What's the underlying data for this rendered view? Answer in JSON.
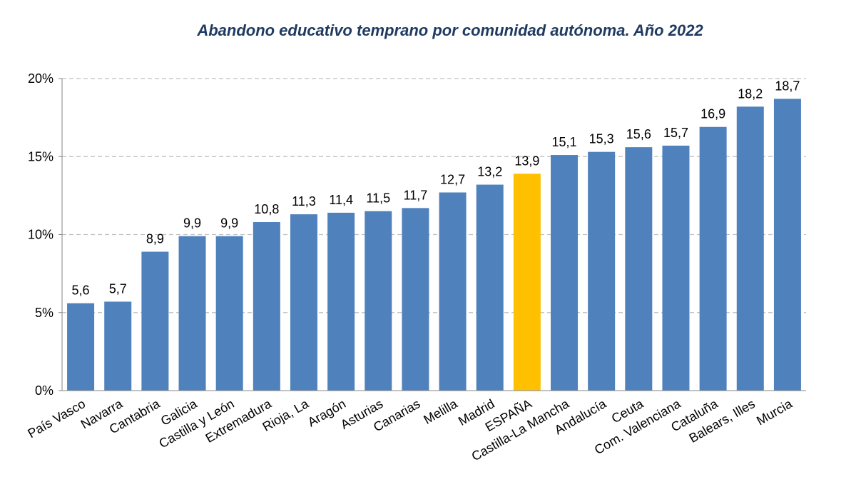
{
  "chart_data": {
    "type": "bar",
    "title": "Abandono educativo temprano por comunidad autónoma. Año 2022",
    "xlabel": "",
    "ylabel": "",
    "ylim": [
      0,
      20
    ],
    "yticks": [
      "0%",
      "5%",
      "10%",
      "15%",
      "20%"
    ],
    "grid": true,
    "categories": [
      "País Vasco",
      "Navarra",
      "Cantabria",
      "Galicia",
      "Castilla y León",
      "Extremadura",
      "Rioja, La",
      "Aragón",
      "Asturias",
      "Canarias",
      "Melilla",
      "Madrid",
      "ESPAÑA",
      "Castilla-La Mancha",
      "Andalucía",
      "Ceuta",
      "Com. Valenciana",
      "Cataluña",
      "Balears, Illes",
      "Murcia"
    ],
    "values": [
      5.6,
      5.7,
      8.9,
      9.9,
      9.9,
      10.8,
      11.3,
      11.4,
      11.5,
      11.7,
      12.7,
      13.2,
      13.9,
      15.1,
      15.3,
      15.6,
      15.7,
      16.9,
      18.2,
      18.7
    ],
    "data_labels": [
      "5,6",
      "5,7",
      "8,9",
      "9,9",
      "9,9",
      "10,8",
      "11,3",
      "11,4",
      "11,5",
      "11,7",
      "12,7",
      "13,2",
      "13,9",
      "15,1",
      "15,3",
      "15,6",
      "15,7",
      "16,9",
      "18,2",
      "18,7"
    ],
    "highlight": "ESPAÑA",
    "colors": {
      "bar": "#4f81bd",
      "highlight": "#ffc000",
      "grid": "#bfbfbf"
    }
  }
}
